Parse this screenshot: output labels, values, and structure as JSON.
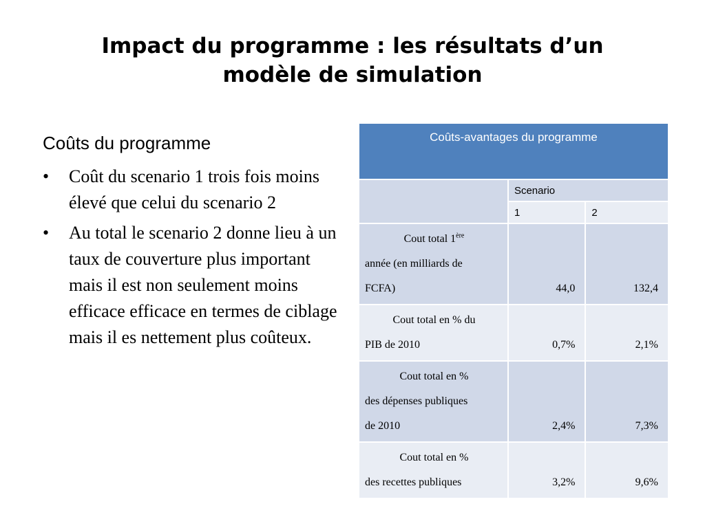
{
  "title": {
    "line1_part1": "Impact du programme : ",
    "line1_part2": "les résultats d’un",
    "line2": "modèle de simulation"
  },
  "left": {
    "heading": "Coûts du programme",
    "bullet_symbol": "•",
    "bullets": [
      "Coût du scenario 1 trois fois moins élevé que celui du scenario 2",
      "Au total le scenario 2 donne lieu à un taux de couverture plus important mais il est non seulement moins efficace  efficace en termes de ciblage mais il es nettement plus coûteux."
    ]
  },
  "table": {
    "title": "Coûts-avantages du programme",
    "scenario_label": "Scenario",
    "scenario_cols": [
      "1",
      "2"
    ],
    "rows": [
      {
        "label_top": "Cout total 1",
        "label_sup": "ère",
        "label_rest": [
          "année (en milliards de",
          "FCFA)"
        ],
        "values": [
          "44,0",
          "132,4"
        ]
      },
      {
        "label_top": "Cout total en % du",
        "label_rest": [
          "PIB de 2010"
        ],
        "values": [
          "0,7%",
          "2,1%"
        ]
      },
      {
        "label_top": "Cout total en %",
        "label_rest": [
          "des dépenses publiques",
          "de 2010"
        ],
        "values": [
          "2,4%",
          "7,3%"
        ]
      },
      {
        "label_top": "Cout total en %",
        "label_rest": [
          "des recettes publiques"
        ],
        "values": [
          "3,2%",
          "9,6%"
        ]
      }
    ]
  },
  "colors": {
    "header": "#4f81bd",
    "band_dark": "#d0d8e8",
    "band_light": "#e9edf4"
  }
}
